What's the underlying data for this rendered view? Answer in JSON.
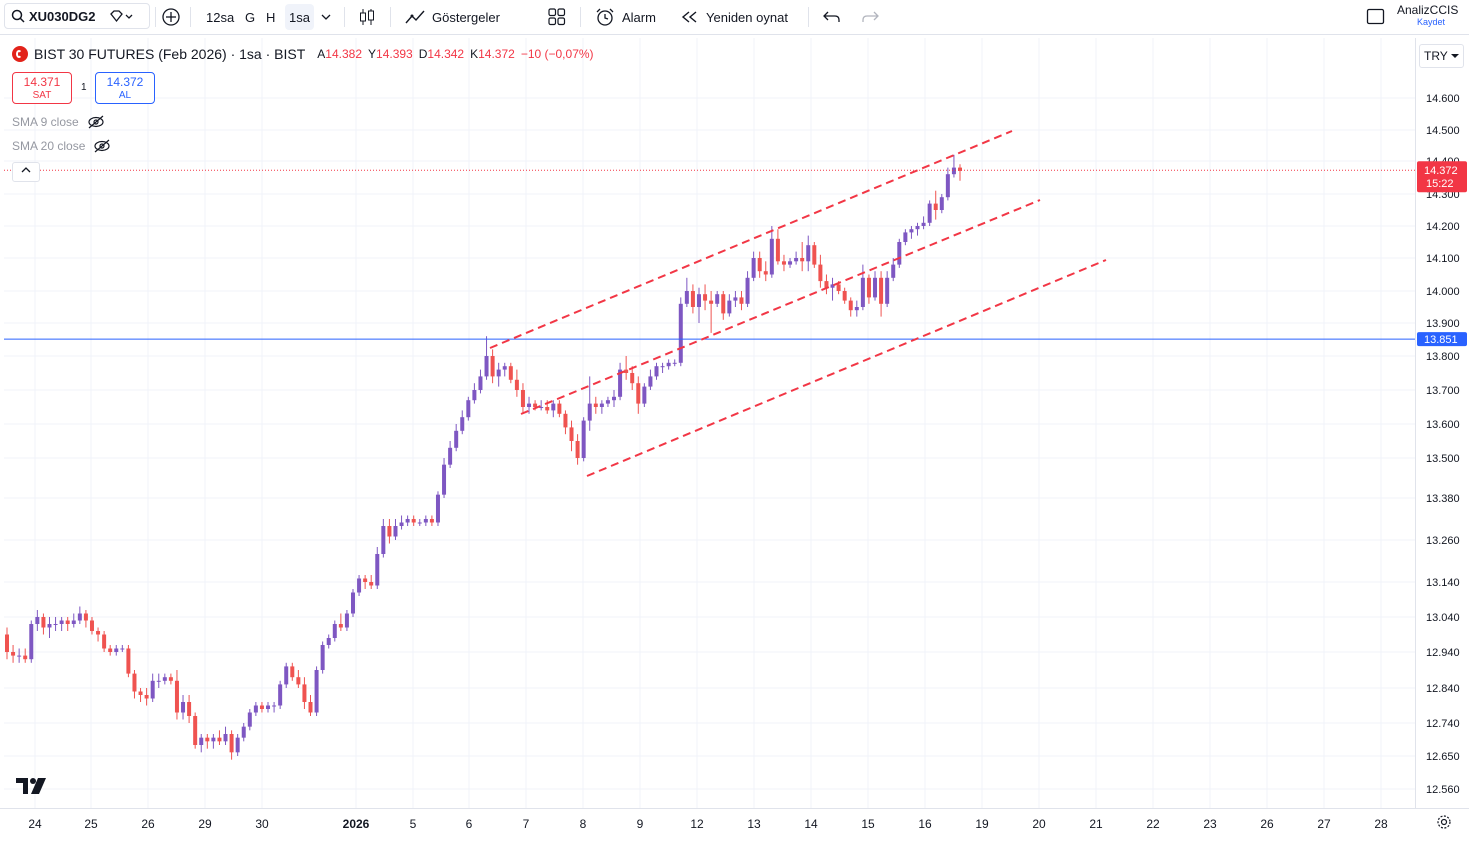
{
  "toolbar": {
    "symbol": "XU030DG2",
    "intervals": [
      "12sa",
      "G",
      "H",
      "1sa"
    ],
    "active_interval": "1sa",
    "indicators_label": "Göstergeler",
    "alarm_label": "Alarm",
    "replay_label": "Yeniden oynat",
    "user": "AnalizCCIS",
    "save_label": "Kaydet"
  },
  "legend": {
    "title": "BIST 30 FUTURES (Feb 2026) · 1sa · BIST",
    "open_label": "A",
    "open": "14.382",
    "high_label": "Y",
    "high": "14.393",
    "low_label": "D",
    "low": "14.342",
    "close_label": "K",
    "close": "14.372",
    "change": "−10 (−0,07%)"
  },
  "trade": {
    "sell_price": "14.371",
    "sell_label": "SAT",
    "buy_price": "14.372",
    "buy_label": "AL",
    "spread": "1"
  },
  "indicators": [
    {
      "label": "SMA 9 close"
    },
    {
      "label": "SMA 20 close"
    }
  ],
  "currency": "TRY",
  "colors": {
    "up": "#7e57c2",
    "down": "#ef5350",
    "channel": "#f23645",
    "hline": "#2962ff",
    "last_price_tag": "#f23645"
  },
  "chart_data": {
    "type": "candlestick",
    "y_ticks": [
      "14.600",
      "14.500",
      "14.400",
      "14.300",
      "14.200",
      "14.100",
      "14.000",
      "13.900",
      "13.800",
      "13.700",
      "13.600",
      "13.500",
      "13.380",
      "13.260",
      "13.140",
      "13.040",
      "12.940",
      "12.840",
      "12.740",
      "12.650",
      "12.560"
    ],
    "x_ticks": [
      "24",
      "25",
      "26",
      "29",
      "30",
      "2026",
      "5",
      "6",
      "7",
      "8",
      "9",
      "12",
      "13",
      "14",
      "15",
      "16",
      "19",
      "20",
      "21",
      "22",
      "23",
      "26",
      "27",
      "28"
    ],
    "last_price": "14.372",
    "countdown": "15:22",
    "horizontal_line": "13.851",
    "ohlc": [
      [
        12.99,
        13.01,
        12.92,
        12.94
      ],
      [
        12.94,
        12.96,
        12.91,
        12.93
      ],
      [
        12.93,
        12.95,
        12.91,
        12.93
      ],
      [
        12.93,
        12.95,
        12.91,
        12.92
      ],
      [
        12.92,
        13.03,
        12.91,
        13.02
      ],
      [
        13.02,
        13.06,
        13.0,
        13.04
      ],
      [
        13.04,
        13.05,
        12.99,
        13.01
      ],
      [
        13.01,
        13.04,
        12.98,
        13.02
      ],
      [
        13.02,
        13.04,
        13.0,
        13.02
      ],
      [
        13.02,
        13.04,
        13.0,
        13.03
      ],
      [
        13.03,
        13.04,
        13.0,
        13.02
      ],
      [
        13.02,
        13.05,
        13.01,
        13.03
      ],
      [
        13.03,
        13.07,
        13.02,
        13.05
      ],
      [
        13.05,
        13.06,
        13.01,
        13.03
      ],
      [
        13.03,
        13.04,
        12.99,
        13.0
      ],
      [
        13.0,
        13.01,
        12.97,
        12.99
      ],
      [
        12.99,
        13.0,
        12.94,
        12.95
      ],
      [
        12.95,
        12.96,
        12.93,
        12.94
      ],
      [
        12.94,
        12.96,
        12.93,
        12.95
      ],
      [
        12.95,
        12.96,
        12.94,
        12.95
      ],
      [
        12.95,
        12.96,
        12.87,
        12.88
      ],
      [
        12.88,
        12.89,
        12.81,
        12.83
      ],
      [
        12.83,
        12.84,
        12.8,
        12.82
      ],
      [
        12.82,
        12.84,
        12.79,
        12.81
      ],
      [
        12.81,
        12.88,
        12.8,
        12.86
      ],
      [
        12.86,
        12.88,
        12.84,
        12.86
      ],
      [
        12.86,
        12.88,
        12.85,
        12.87
      ],
      [
        12.87,
        12.88,
        12.85,
        12.86
      ],
      [
        12.86,
        12.89,
        12.75,
        12.77
      ],
      [
        12.77,
        12.82,
        12.75,
        12.8
      ],
      [
        12.8,
        12.82,
        12.74,
        12.76
      ],
      [
        12.76,
        12.77,
        12.67,
        12.68
      ],
      [
        12.68,
        12.71,
        12.66,
        12.7
      ],
      [
        12.7,
        12.71,
        12.67,
        12.69
      ],
      [
        12.69,
        12.71,
        12.67,
        12.7
      ],
      [
        12.7,
        12.72,
        12.68,
        12.69
      ],
      [
        12.69,
        12.73,
        12.68,
        12.71
      ],
      [
        12.71,
        12.72,
        12.64,
        12.66
      ],
      [
        12.66,
        12.71,
        12.65,
        12.7
      ],
      [
        12.7,
        12.74,
        12.69,
        12.73
      ],
      [
        12.73,
        12.78,
        12.72,
        12.77
      ],
      [
        12.77,
        12.8,
        12.76,
        12.79
      ],
      [
        12.79,
        12.8,
        12.77,
        12.78
      ],
      [
        12.78,
        12.8,
        12.77,
        12.79
      ],
      [
        12.79,
        12.8,
        12.77,
        12.79
      ],
      [
        12.79,
        12.86,
        12.78,
        12.85
      ],
      [
        12.85,
        12.91,
        12.84,
        12.9
      ],
      [
        12.9,
        12.91,
        12.86,
        12.87
      ],
      [
        12.87,
        12.89,
        12.84,
        12.85
      ],
      [
        12.85,
        12.87,
        12.78,
        12.8
      ],
      [
        12.8,
        12.82,
        12.76,
        12.77
      ],
      [
        12.77,
        12.9,
        12.76,
        12.89
      ],
      [
        12.89,
        12.97,
        12.88,
        12.96
      ],
      [
        12.96,
        12.99,
        12.95,
        12.98
      ],
      [
        12.98,
        13.03,
        12.97,
        13.02
      ],
      [
        13.02,
        13.05,
        13.0,
        13.01
      ],
      [
        13.01,
        13.06,
        13.0,
        13.05
      ],
      [
        13.05,
        13.12,
        13.04,
        13.11
      ],
      [
        13.11,
        13.16,
        13.1,
        13.15
      ],
      [
        13.15,
        13.16,
        13.12,
        13.14
      ],
      [
        13.14,
        13.16,
        13.12,
        13.13
      ],
      [
        13.13,
        13.24,
        13.12,
        13.22
      ],
      [
        13.22,
        13.32,
        13.21,
        13.3
      ],
      [
        13.3,
        13.32,
        13.25,
        13.27
      ],
      [
        13.27,
        13.32,
        13.26,
        13.3
      ],
      [
        13.3,
        13.33,
        13.29,
        13.31
      ],
      [
        13.31,
        13.33,
        13.3,
        13.32
      ],
      [
        13.32,
        13.33,
        13.3,
        13.31
      ],
      [
        13.31,
        13.32,
        13.3,
        13.31
      ],
      [
        13.31,
        13.33,
        13.3,
        13.32
      ],
      [
        13.32,
        13.33,
        13.3,
        13.31
      ],
      [
        13.31,
        13.4,
        13.3,
        13.39
      ],
      [
        13.39,
        13.5,
        13.38,
        13.48
      ],
      [
        13.48,
        13.55,
        13.47,
        13.53
      ],
      [
        13.53,
        13.6,
        13.52,
        13.58
      ],
      [
        13.58,
        13.64,
        13.57,
        13.62
      ],
      [
        13.62,
        13.68,
        13.61,
        13.67
      ],
      [
        13.67,
        13.72,
        13.66,
        13.7
      ],
      [
        13.7,
        13.76,
        13.69,
        13.74
      ],
      [
        13.74,
        13.86,
        13.73,
        13.8
      ],
      [
        13.8,
        13.82,
        13.72,
        13.74
      ],
      [
        13.74,
        13.78,
        13.71,
        13.76
      ],
      [
        13.76,
        13.78,
        13.74,
        13.77
      ],
      [
        13.77,
        13.78,
        13.72,
        13.73
      ],
      [
        13.73,
        13.76,
        13.68,
        13.7
      ],
      [
        13.7,
        13.72,
        13.63,
        13.65
      ],
      [
        13.65,
        13.68,
        13.63,
        13.66
      ],
      [
        13.66,
        13.67,
        13.64,
        13.65
      ],
      [
        13.65,
        13.67,
        13.64,
        13.65
      ],
      [
        13.65,
        13.67,
        13.63,
        13.64
      ],
      [
        13.64,
        13.67,
        13.62,
        13.66
      ],
      [
        13.66,
        13.67,
        13.62,
        13.63
      ],
      [
        13.63,
        13.64,
        13.57,
        13.59
      ],
      [
        13.59,
        13.61,
        13.52,
        13.55
      ],
      [
        13.55,
        13.57,
        13.48,
        13.5
      ],
      [
        13.5,
        13.62,
        13.49,
        13.61
      ],
      [
        13.61,
        13.74,
        13.58,
        13.66
      ],
      [
        13.66,
        13.68,
        13.63,
        13.65
      ],
      [
        13.65,
        13.67,
        13.63,
        13.66
      ],
      [
        13.66,
        13.68,
        13.65,
        13.67
      ],
      [
        13.67,
        13.7,
        13.65,
        13.68
      ],
      [
        13.68,
        13.78,
        13.67,
        13.76
      ],
      [
        13.76,
        13.8,
        13.73,
        13.75
      ],
      [
        13.75,
        13.77,
        13.7,
        13.72
      ],
      [
        13.72,
        13.74,
        13.63,
        13.66
      ],
      [
        13.66,
        13.72,
        13.65,
        13.71
      ],
      [
        13.71,
        13.76,
        13.7,
        13.74
      ],
      [
        13.74,
        13.78,
        13.73,
        13.77
      ],
      [
        13.77,
        13.78,
        13.75,
        13.77
      ],
      [
        13.77,
        13.79,
        13.76,
        13.78
      ],
      [
        13.78,
        13.79,
        13.77,
        13.78
      ],
      [
        13.78,
        13.98,
        13.77,
        13.96
      ],
      [
        13.96,
        14.04,
        13.95,
        14.0
      ],
      [
        14.0,
        14.02,
        13.93,
        13.95
      ],
      [
        13.95,
        14.01,
        13.9,
        13.99
      ],
      [
        13.99,
        14.02,
        13.94,
        13.97
      ],
      [
        13.97,
        14.0,
        13.87,
        13.96
      ],
      [
        13.96,
        14.0,
        13.95,
        13.99
      ],
      [
        13.99,
        14.0,
        13.91,
        13.93
      ],
      [
        13.93,
        13.99,
        13.92,
        13.97
      ],
      [
        13.97,
        14.0,
        13.95,
        13.98
      ],
      [
        13.98,
        14.0,
        13.94,
        13.96
      ],
      [
        13.96,
        14.06,
        13.95,
        14.04
      ],
      [
        14.04,
        14.12,
        14.03,
        14.1
      ],
      [
        14.1,
        14.12,
        14.04,
        14.06
      ],
      [
        14.06,
        14.09,
        14.03,
        14.05
      ],
      [
        14.05,
        14.2,
        14.04,
        14.16
      ],
      [
        14.16,
        14.19,
        14.08,
        14.09
      ],
      [
        14.09,
        14.11,
        14.06,
        14.08
      ],
      [
        14.08,
        14.1,
        14.07,
        14.09
      ],
      [
        14.09,
        14.12,
        14.08,
        14.1
      ],
      [
        14.1,
        14.15,
        14.06,
        14.09
      ],
      [
        14.09,
        14.17,
        14.06,
        14.14
      ],
      [
        14.14,
        14.15,
        14.07,
        14.08
      ],
      [
        14.08,
        14.11,
        14.01,
        14.03
      ],
      [
        14.03,
        14.05,
        13.99,
        14.01
      ],
      [
        14.01,
        14.04,
        13.97,
        14.02
      ],
      [
        14.02,
        14.03,
        13.99,
        14.0
      ],
      [
        14.0,
        14.01,
        13.96,
        13.97
      ],
      [
        13.97,
        13.98,
        13.92,
        13.94
      ],
      [
        13.94,
        13.97,
        13.92,
        13.95
      ],
      [
        13.95,
        14.08,
        13.94,
        14.04
      ],
      [
        14.04,
        14.05,
        13.96,
        13.98
      ],
      [
        13.98,
        14.06,
        13.97,
        14.04
      ],
      [
        14.04,
        14.06,
        13.92,
        13.96
      ],
      [
        13.96,
        14.06,
        13.95,
        14.04
      ],
      [
        14.04,
        14.1,
        14.03,
        14.08
      ],
      [
        14.08,
        14.16,
        14.07,
        14.15
      ],
      [
        14.15,
        14.19,
        14.14,
        14.18
      ],
      [
        14.18,
        14.2,
        14.16,
        14.19
      ],
      [
        14.19,
        14.21,
        14.17,
        14.2
      ],
      [
        14.2,
        14.23,
        14.19,
        14.21
      ],
      [
        14.21,
        14.28,
        14.2,
        14.27
      ],
      [
        14.27,
        14.31,
        14.22,
        14.25
      ],
      [
        14.25,
        14.3,
        14.24,
        14.29
      ],
      [
        14.29,
        14.38,
        14.28,
        14.36
      ],
      [
        14.36,
        14.42,
        14.35,
        14.38
      ],
      [
        14.38,
        14.39,
        14.34,
        14.37
      ]
    ]
  }
}
